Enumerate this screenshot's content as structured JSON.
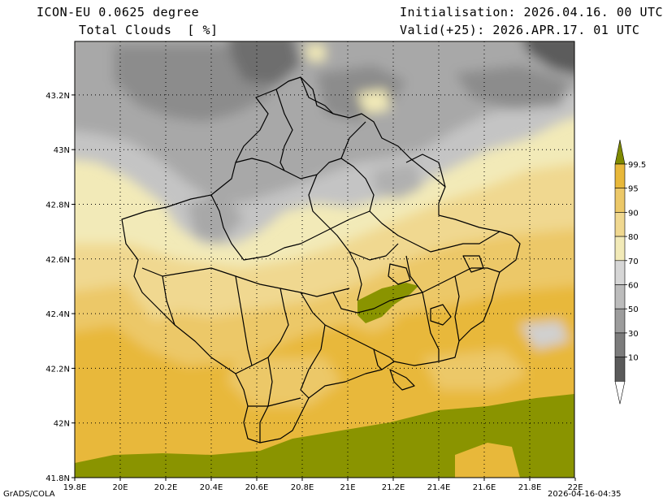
{
  "header": {
    "model": "ICON-EU 0.0625 degree",
    "variable": "Total Clouds  [ %]",
    "init": "Initialisation: 2026.04.16. 00 UTC",
    "valid": "Valid(+25): 2026.APR.17. 01 UTC"
  },
  "footer": {
    "left": "GrADS/COLA",
    "right": "2026-04-16-04:35"
  },
  "map": {
    "lon_labels": [
      "19.8E",
      "20E",
      "20.2E",
      "20.4E",
      "20.6E",
      "20.8E",
      "21E",
      "21.2E",
      "21.4E",
      "21.6E",
      "21.8E",
      "22E"
    ],
    "lat_labels": [
      "43.2N",
      "43N",
      "42.8N",
      "42.6N",
      "42.4N",
      "42.2N",
      "42N",
      "41.8N"
    ]
  },
  "legend": {
    "labels": [
      "99.5",
      "95",
      "90",
      "80",
      "70",
      "60",
      "50",
      "30",
      "10"
    ],
    "colors": [
      "#7f8a00",
      "#e8b83a",
      "#ecc868",
      "#f0d890",
      "#f2eab8",
      "#d6d6d6",
      "#bcbcbc",
      "#9c9c9c",
      "#7c7c7c",
      "#5a5a5a",
      "#ffffff"
    ]
  }
}
